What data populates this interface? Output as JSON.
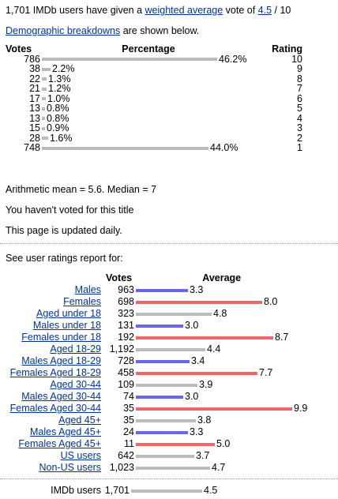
{
  "summary": {
    "text_pre": "1,701 IMDb users have given a ",
    "link_weighted": "weighted average",
    "text_mid": " vote of ",
    "link_score": "4.5",
    "text_post": " / 10"
  },
  "demographic_line": {
    "link": "Demographic breakdowns",
    "text": " are shown below."
  },
  "vote_table": {
    "headers": {
      "votes": "Votes",
      "percentage": "Percentage",
      "rating": "Rating"
    },
    "rows": [
      {
        "votes": "786",
        "percent": 46.2,
        "percent_label": "46.2%",
        "rating": "10"
      },
      {
        "votes": "38",
        "percent": 2.2,
        "percent_label": "2.2%",
        "rating": "9"
      },
      {
        "votes": "22",
        "percent": 1.3,
        "percent_label": "1.3%",
        "rating": "8"
      },
      {
        "votes": "21",
        "percent": 1.2,
        "percent_label": "1.2%",
        "rating": "7"
      },
      {
        "votes": "17",
        "percent": 1.0,
        "percent_label": "1.0%",
        "rating": "6"
      },
      {
        "votes": "13",
        "percent": 0.8,
        "percent_label": "0.8%",
        "rating": "5"
      },
      {
        "votes": "13",
        "percent": 0.8,
        "percent_label": "0.8%",
        "rating": "4"
      },
      {
        "votes": "15",
        "percent": 0.9,
        "percent_label": "0.9%",
        "rating": "3"
      },
      {
        "votes": "28",
        "percent": 1.6,
        "percent_label": "1.6%",
        "rating": "2"
      },
      {
        "votes": "748",
        "percent": 44.0,
        "percent_label": "44.0%",
        "rating": "1"
      }
    ]
  },
  "stats": {
    "mean_median": "Arithmetic mean = 5.6.  Median = 7",
    "not_voted": "You haven't voted for this title",
    "updated": "This page is updated daily."
  },
  "report_intro": "See user ratings report for:",
  "demo_table": {
    "headers": {
      "votes": "Votes",
      "average": "Average"
    },
    "colors": {
      "male": "#6666ee",
      "female": "#ee6666",
      "neutral": "#bbbbbb"
    },
    "rows": [
      {
        "label": "Males",
        "votes": "963",
        "average": 3.3,
        "average_label": "3.3",
        "group": "male"
      },
      {
        "label": "Females",
        "votes": "698",
        "average": 8.0,
        "average_label": "8.0",
        "group": "female"
      },
      {
        "label": "Aged under 18",
        "votes": "323",
        "average": 4.8,
        "average_label": "4.8",
        "group": "neutral"
      },
      {
        "label": "Males under 18",
        "votes": "131",
        "average": 3.0,
        "average_label": "3.0",
        "group": "male"
      },
      {
        "label": "Females under 18",
        "votes": "192",
        "average": 8.7,
        "average_label": "8.7",
        "group": "female"
      },
      {
        "label": "Aged 18-29",
        "votes": "1,192",
        "average": 4.4,
        "average_label": "4.4",
        "group": "neutral"
      },
      {
        "label": "Males Aged 18-29",
        "votes": "728",
        "average": 3.4,
        "average_label": "3.4",
        "group": "male"
      },
      {
        "label": "Females Aged 18-29",
        "votes": "458",
        "average": 7.7,
        "average_label": "7.7",
        "group": "female"
      },
      {
        "label": "Aged 30-44",
        "votes": "109",
        "average": 3.9,
        "average_label": "3.9",
        "group": "neutral"
      },
      {
        "label": "Males Aged 30-44",
        "votes": "74",
        "average": 3.0,
        "average_label": "3.0",
        "group": "male"
      },
      {
        "label": "Females Aged 30-44",
        "votes": "35",
        "average": 9.9,
        "average_label": "9.9",
        "group": "female"
      },
      {
        "label": "Aged 45+",
        "votes": "35",
        "average": 3.8,
        "average_label": "3.8",
        "group": "neutral"
      },
      {
        "label": "Males Aged 45+",
        "votes": "24",
        "average": 3.3,
        "average_label": "3.3",
        "group": "male"
      },
      {
        "label": "Females Aged 45+",
        "votes": "11",
        "average": 5.0,
        "average_label": "5.0",
        "group": "female"
      },
      {
        "label": "US users",
        "votes": "642",
        "average": 3.7,
        "average_label": "3.7",
        "group": "neutral"
      },
      {
        "label": "Non-US users",
        "votes": "1,023",
        "average": 4.7,
        "average_label": "4.7",
        "group": "neutral"
      }
    ],
    "footer": {
      "label": "IMDb users",
      "votes": "1,701",
      "average": 4.5,
      "average_label": "4.5",
      "group": "neutral"
    }
  }
}
